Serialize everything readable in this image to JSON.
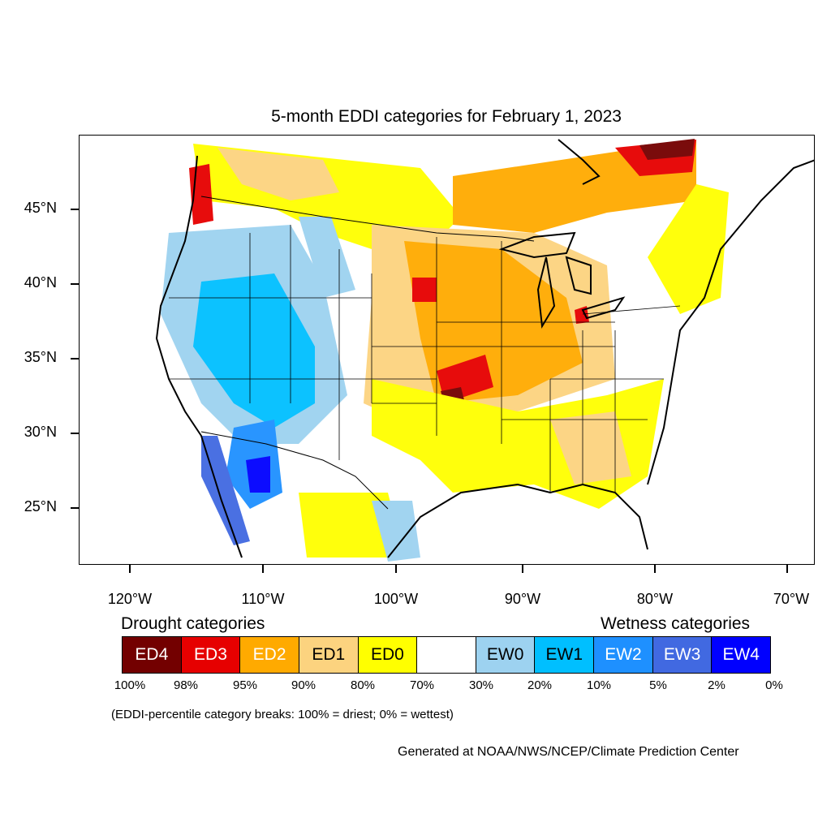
{
  "title": "5-month EDDI categories for February 1, 2023",
  "latitude_labels": [
    "45°N",
    "40°N",
    "35°N",
    "30°N",
    "25°N"
  ],
  "longitude_labels": [
    "120°W",
    "110°W",
    "100°W",
    "90°W",
    "80°W",
    "70°W"
  ],
  "legend": {
    "drought_heading": "Drought categories",
    "wetness_heading": "Wetness categories",
    "categories": [
      {
        "label": "ED4",
        "color": "#730000",
        "text_color": "#ffffff"
      },
      {
        "label": "ED3",
        "color": "#e60000",
        "text_color": "#ffffff"
      },
      {
        "label": "ED2",
        "color": "#ffaa00",
        "text_color": "#ffffff"
      },
      {
        "label": "ED1",
        "color": "#fcd37f",
        "text_color": "#000000"
      },
      {
        "label": "ED0",
        "color": "#ffff00",
        "text_color": "#000000"
      },
      {
        "label": "",
        "color": "#ffffff",
        "text_color": "#000000"
      },
      {
        "label": "EW0",
        "color": "#9dd2f0",
        "text_color": "#000000"
      },
      {
        "label": "EW1",
        "color": "#00bfff",
        "text_color": "#000000"
      },
      {
        "label": "EW2",
        "color": "#1e90ff",
        "text_color": "#ffffff"
      },
      {
        "label": "EW3",
        "color": "#4169e1",
        "text_color": "#ffffff"
      },
      {
        "label": "EW4",
        "color": "#0000ff",
        "text_color": "#ffffff"
      }
    ],
    "breaks": [
      "100%",
      "98%",
      "95%",
      "90%",
      "80%",
      "70%",
      "30%",
      "20%",
      "10%",
      "5%",
      "2%",
      "0%"
    ]
  },
  "note": "(EDDI-percentile category breaks: 100% = driest; 0% = wettest)",
  "credit": "Generated at NOAA/NWS/NCEP/Climate Prediction Center"
}
